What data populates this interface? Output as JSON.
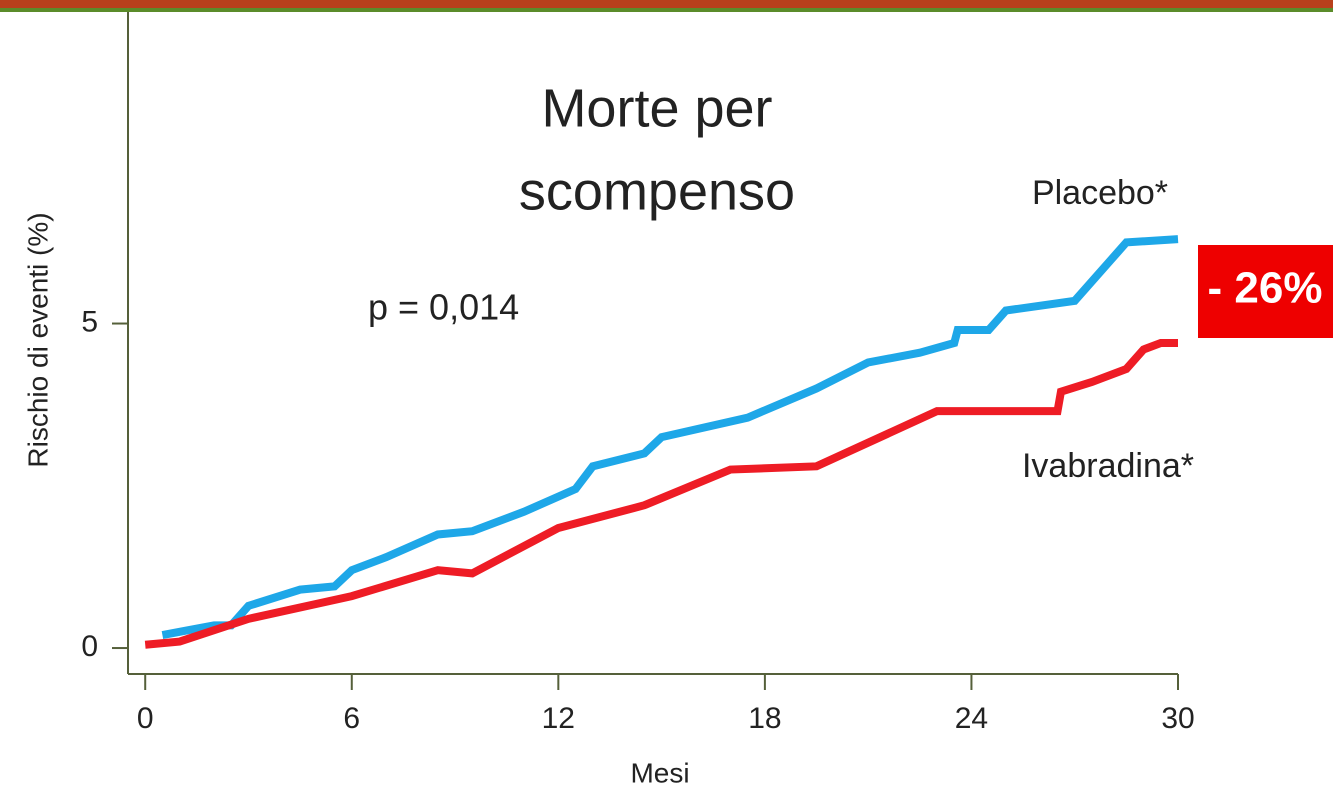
{
  "chart_data": {
    "type": "line",
    "title": [
      "Morte per",
      "scompenso"
    ],
    "annotations": [
      "p = 0,014",
      "- 26%"
    ],
    "xlabel": "Mesi",
    "ylabel": "Rischio di eventi (%)",
    "xlim": [
      -0.5,
      30
    ],
    "ylim": [
      -0.4,
      9.8
    ],
    "xticks": [
      0,
      6,
      12,
      18,
      24,
      30
    ],
    "yticks": [
      0,
      5
    ],
    "series": [
      {
        "name": "Placebo*",
        "color": "#1ea7e8",
        "x": [
          0.5,
          1,
          2,
          2.5,
          3,
          4.5,
          5.5,
          6,
          7,
          8.5,
          9.5,
          11,
          12.5,
          13,
          14.5,
          15,
          17.5,
          19.5,
          21,
          22.5,
          23.5,
          23.6,
          24.5,
          25,
          27,
          28,
          28.5,
          30
        ],
        "values": [
          0.2,
          0.25,
          0.35,
          0.35,
          0.65,
          0.9,
          0.95,
          1.2,
          1.4,
          1.75,
          1.8,
          2.1,
          2.45,
          2.8,
          3.0,
          3.25,
          3.55,
          4.0,
          4.4,
          4.55,
          4.7,
          4.9,
          4.9,
          5.2,
          5.35,
          5.95,
          6.25,
          6.3
        ]
      },
      {
        "name": "Ivabradina*",
        "color": "#ee1c25",
        "x": [
          0,
          1,
          3,
          6,
          8.5,
          9.5,
          12,
          14.5,
          17,
          19.5,
          23,
          26.5,
          26.6,
          27.5,
          28.5,
          29,
          29.5,
          30
        ],
        "values": [
          0.05,
          0.1,
          0.45,
          0.8,
          1.2,
          1.15,
          1.85,
          2.2,
          2.75,
          2.8,
          3.65,
          3.65,
          3.95,
          4.1,
          4.3,
          4.6,
          4.7,
          4.7
        ]
      }
    ]
  }
}
